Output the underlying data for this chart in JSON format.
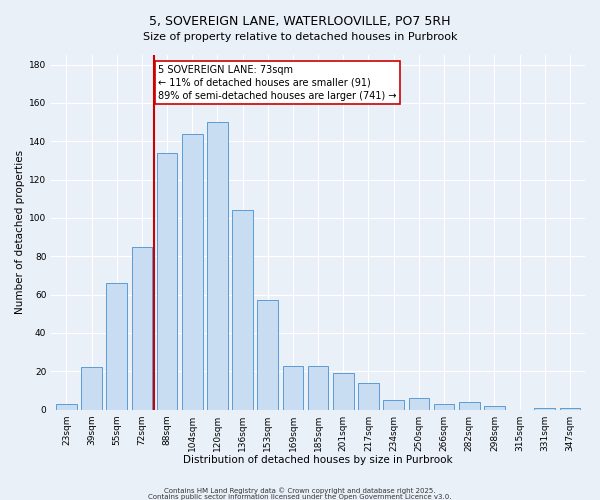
{
  "title": "5, SOVEREIGN LANE, WATERLOOVILLE, PO7 5RH",
  "subtitle": "Size of property relative to detached houses in Purbrook",
  "xlabel": "Distribution of detached houses by size in Purbrook",
  "ylabel": "Number of detached properties",
  "bar_labels": [
    "23sqm",
    "39sqm",
    "55sqm",
    "72sqm",
    "88sqm",
    "104sqm",
    "120sqm",
    "136sqm",
    "153sqm",
    "169sqm",
    "185sqm",
    "201sqm",
    "217sqm",
    "234sqm",
    "250sqm",
    "266sqm",
    "282sqm",
    "298sqm",
    "315sqm",
    "331sqm",
    "347sqm"
  ],
  "bar_heights": [
    3,
    22,
    66,
    85,
    134,
    144,
    150,
    104,
    57,
    23,
    23,
    19,
    14,
    5,
    6,
    3,
    4,
    2,
    0,
    1,
    1
  ],
  "bar_color": "#c9ddf2",
  "bar_edge_color": "#5b9bd5",
  "vline_x_idx": 3.5,
  "vline_color": "#cc0000",
  "ylim": [
    0,
    185
  ],
  "yticks": [
    0,
    20,
    40,
    60,
    80,
    100,
    120,
    140,
    160,
    180
  ],
  "annotation_text": "5 SOVEREIGN LANE: 73sqm\n← 11% of detached houses are smaller (91)\n89% of semi-detached houses are larger (741) →",
  "annotation_box_color": "#ffffff",
  "annotation_box_edge_color": "#cc0000",
  "footer_line1": "Contains HM Land Registry data © Crown copyright and database right 2025.",
  "footer_line2": "Contains public sector information licensed under the Open Government Licence v3.0.",
  "background_color": "#eaf0f8",
  "grid_color": "#ffffff",
  "title_fontsize": 9,
  "subtitle_fontsize": 8,
  "axis_label_fontsize": 7.5,
  "tick_fontsize": 6.5,
  "annotation_fontsize": 7,
  "footer_fontsize": 5
}
